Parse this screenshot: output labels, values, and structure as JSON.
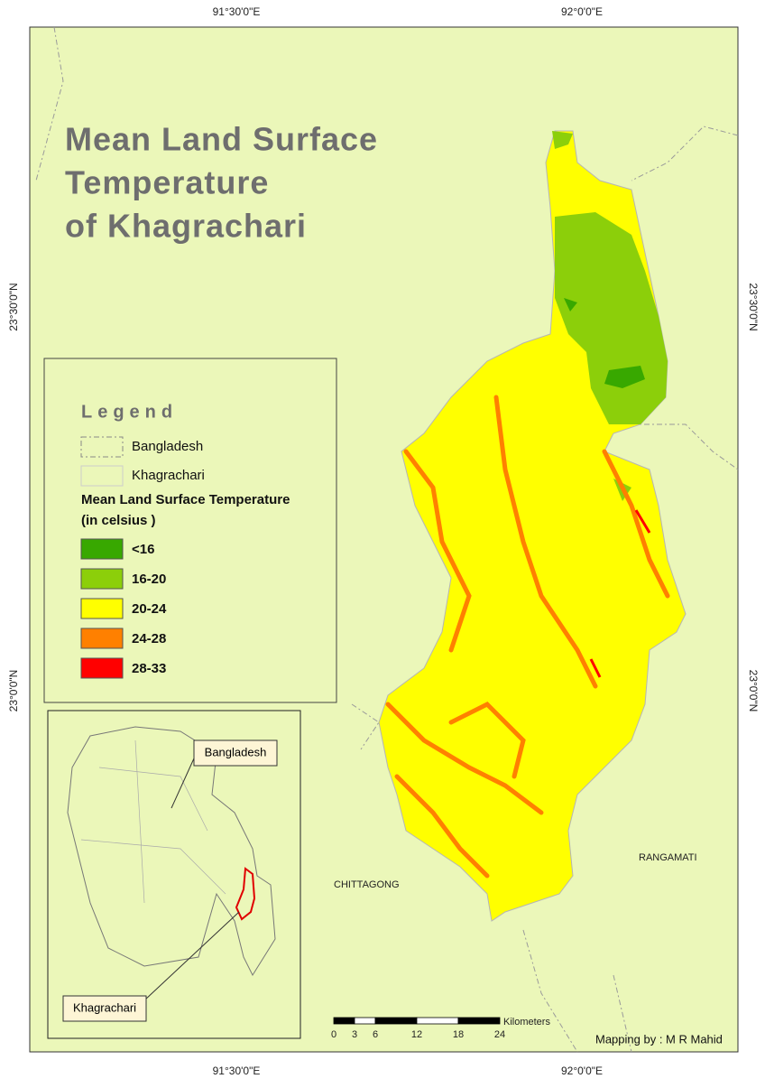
{
  "title": [
    "Mean Land Surface",
    "Temperature",
    "of Khagrachari"
  ],
  "graticule": {
    "top": [
      "91°30'0\"E",
      "92°0'0\"E"
    ],
    "bottom": [
      "91°30'0\"E",
      "92°0'0\"E"
    ],
    "left": [
      "23°30'0\"N",
      "23°0'0\"N"
    ],
    "right": [
      "23°30'0\"N",
      "23°0'0\"N"
    ]
  },
  "legend": {
    "heading": "Legend",
    "boundaries": [
      "Bangladesh",
      "Khagrachari"
    ],
    "lst_title": "Mean Land Surface Temperature",
    "lst_unit": "(in celsius )",
    "classes": [
      {
        "label": "<16",
        "color": "#38a800"
      },
      {
        "label": "16-20",
        "color": "#8ccf0a"
      },
      {
        "label": "20-24",
        "color": "#ffff00"
      },
      {
        "label": "24-28",
        "color": "#ff8000"
      },
      {
        "label": "28-33",
        "color": "#ff0000"
      }
    ]
  },
  "places": [
    "CHITTAGONG",
    "RANGAMATI"
  ],
  "inset": {
    "callouts": [
      "Bangladesh",
      "Khagrachari"
    ]
  },
  "scale_bar": {
    "ticks": [
      0,
      3,
      6,
      12,
      18,
      24
    ],
    "unit": "Kilometers"
  },
  "credit": "Mapping by : M R Mahid"
}
